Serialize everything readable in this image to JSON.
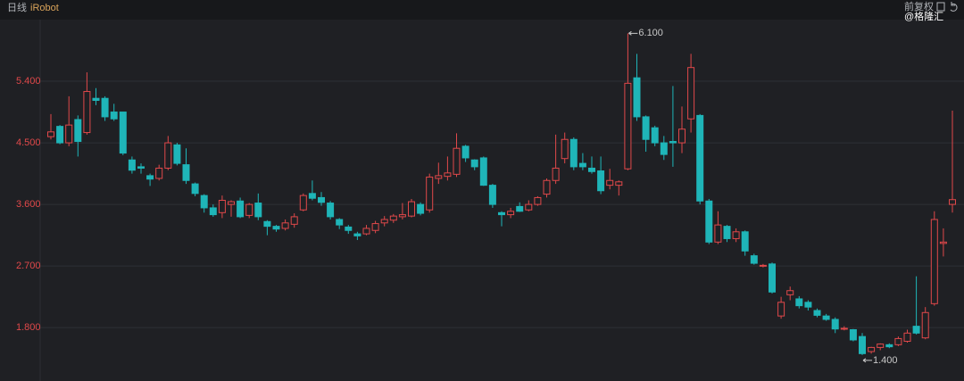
{
  "header": {
    "period": "日线",
    "symbol": "iRobot",
    "adjust": "前复权",
    "watermark": "@格隆汇"
  },
  "chart_data": {
    "type": "candlestick",
    "open": [
      4.59,
      4.74,
      4.5,
      4.84,
      4.65,
      5.15,
      5.15,
      4.95,
      4.95,
      4.25,
      4.15,
      4.02,
      3.98,
      4.13,
      4.47,
      4.18,
      3.9,
      3.73,
      3.55,
      3.48,
      3.6,
      3.65,
      3.44,
      3.62,
      3.35,
      3.28,
      3.25,
      3.31,
      3.52,
      3.76,
      3.7,
      3.62,
      3.38,
      3.27,
      3.17,
      3.17,
      3.22,
      3.33,
      3.37,
      3.42,
      3.43,
      3.6,
      3.52,
      3.98,
      4.01,
      4.04,
      4.45,
      4.25,
      4.28,
      3.88,
      3.48,
      3.45,
      3.57,
      3.52,
      3.6,
      3.75,
      3.95,
      4.27,
      4.55,
      4.2,
      4.13,
      4.09,
      3.88,
      3.88,
      4.12,
      5.45,
      4.88,
      4.72,
      4.5,
      4.52,
      4.5,
      4.85,
      4.9,
      3.65,
      3.05,
      3.28,
      3.1,
      3.2,
      2.85,
      2.7,
      2.73,
      1.97,
      2.28,
      2.22,
      2.17,
      2.05,
      1.97,
      1.92,
      1.78,
      1.77,
      1.67,
      1.45,
      1.51,
      1.55,
      1.55,
      1.6,
      1.82,
      1.65,
      2.15,
      3.03,
      3.6
    ],
    "high": [
      4.92,
      4.76,
      5.18,
      4.9,
      5.53,
      5.3,
      5.18,
      5.07,
      4.95,
      4.3,
      4.2,
      4.05,
      4.18,
      4.6,
      4.5,
      4.42,
      3.92,
      3.75,
      3.6,
      3.73,
      3.66,
      3.7,
      3.62,
      3.76,
      3.37,
      3.3,
      3.38,
      3.47,
      3.76,
      3.95,
      3.78,
      3.65,
      3.4,
      3.3,
      3.2,
      3.3,
      3.36,
      3.43,
      3.46,
      3.62,
      3.68,
      3.63,
      4.05,
      4.21,
      4.3,
      4.64,
      4.47,
      4.26,
      4.3,
      3.9,
      3.5,
      3.55,
      3.63,
      3.66,
      3.72,
      3.98,
      4.62,
      4.65,
      4.58,
      4.35,
      4.3,
      4.3,
      4.12,
      3.95,
      6.1,
      5.8,
      4.9,
      4.75,
      4.6,
      5.33,
      5.03,
      5.8,
      4.92,
      3.68,
      3.5,
      3.3,
      3.25,
      3.22,
      2.88,
      2.73,
      2.75,
      2.25,
      2.4,
      2.26,
      2.2,
      2.08,
      2.0,
      1.95,
      1.82,
      1.78,
      1.72,
      1.52,
      1.57,
      1.57,
      1.67,
      1.77,
      2.55,
      2.1,
      3.5,
      3.25,
      4.97
    ],
    "low": [
      4.55,
      4.48,
      4.45,
      4.3,
      4.62,
      5.05,
      4.82,
      4.82,
      4.32,
      4.05,
      4.05,
      3.87,
      3.95,
      4.1,
      4.17,
      3.9,
      3.72,
      3.48,
      3.42,
      3.4,
      3.42,
      3.4,
      3.4,
      3.37,
      3.15,
      3.2,
      3.22,
      3.26,
      3.5,
      3.66,
      3.58,
      3.38,
      3.24,
      3.17,
      3.08,
      3.15,
      3.18,
      3.28,
      3.33,
      3.38,
      3.41,
      3.44,
      3.48,
      3.9,
      3.95,
      4.0,
      4.22,
      4.1,
      3.87,
      3.55,
      3.28,
      3.4,
      3.49,
      3.5,
      3.58,
      3.7,
      3.9,
      4.2,
      4.1,
      4.1,
      4.05,
      3.75,
      3.82,
      3.73,
      4.1,
      4.82,
      4.37,
      4.45,
      4.25,
      4.15,
      4.35,
      4.65,
      3.6,
      3.02,
      3.02,
      3.05,
      3.05,
      2.85,
      2.72,
      2.68,
      2.3,
      1.93,
      2.2,
      2.08,
      2.05,
      1.95,
      1.9,
      1.72,
      1.76,
      1.6,
      1.4,
      1.42,
      1.47,
      1.5,
      1.53,
      1.58,
      1.7,
      1.63,
      2.12,
      2.84,
      3.48
    ],
    "close": [
      4.66,
      4.5,
      4.76,
      4.52,
      5.25,
      5.12,
      4.88,
      4.85,
      4.35,
      4.1,
      4.13,
      3.97,
      4.13,
      4.5,
      4.2,
      3.95,
      3.76,
      3.55,
      3.45,
      3.66,
      3.64,
      3.42,
      3.6,
      3.42,
      3.28,
      3.24,
      3.33,
      3.42,
      3.73,
      3.69,
      3.63,
      3.42,
      3.3,
      3.22,
      3.14,
      3.25,
      3.32,
      3.38,
      3.43,
      3.45,
      3.64,
      3.47,
      4.0,
      4.02,
      4.06,
      4.42,
      4.28,
      4.15,
      3.88,
      3.6,
      3.45,
      3.5,
      3.5,
      3.6,
      3.7,
      3.95,
      4.13,
      4.55,
      4.15,
      4.15,
      4.08,
      3.8,
      3.95,
      3.93,
      5.37,
      4.88,
      4.55,
      4.5,
      4.33,
      4.5,
      4.7,
      5.6,
      3.65,
      3.05,
      3.3,
      3.1,
      3.2,
      2.92,
      2.74,
      2.71,
      2.32,
      2.17,
      2.34,
      2.12,
      2.1,
      1.98,
      1.92,
      1.78,
      1.79,
      1.62,
      1.42,
      1.51,
      1.56,
      1.52,
      1.64,
      1.72,
      1.72,
      2.02,
      3.38,
      3.05,
      3.67
    ],
    "ylim": [
      1.02,
      6.3
    ],
    "yticks": [
      {
        "value": 1.8,
        "label": "1.800"
      },
      {
        "value": 2.7,
        "label": "2.700"
      },
      {
        "value": 3.6,
        "label": "3.600"
      },
      {
        "value": 4.5,
        "label": "4.500"
      },
      {
        "value": 5.4,
        "label": "5.400"
      }
    ],
    "annotations": [
      {
        "value": 6.1,
        "label": "6.100"
      },
      {
        "value": 1.4,
        "label": "1.400"
      }
    ],
    "up_color": "#e0484a",
    "down_color": "#1fb5b8",
    "grid": true
  }
}
